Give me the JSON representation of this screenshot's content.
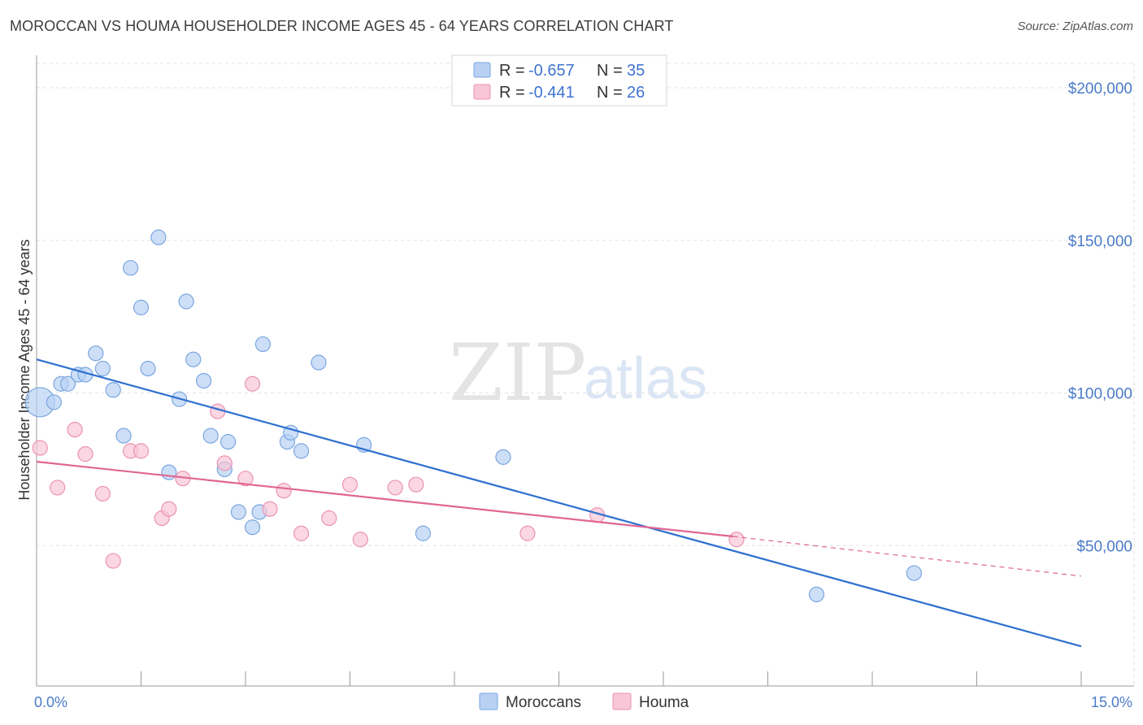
{
  "title": "MOROCCAN VS HOUMA HOUSEHOLDER INCOME AGES 45 - 64 YEARS CORRELATION CHART",
  "source": "Source: ZipAtlas.com",
  "watermark": {
    "zip": "ZIP",
    "atlas": "atlas"
  },
  "colors": {
    "moroccans_fill": "#b8d1f3",
    "moroccans_stroke": "#7aa6e0",
    "moroccans_line": "#2d6fd0",
    "houma_fill": "#f8c6d6",
    "houma_stroke": "#ec93b2",
    "houma_line": "#e06694",
    "grid": "#e2e2e2",
    "tick": "#4a7bc8"
  },
  "legend": {
    "rows": [
      {
        "r_label": "R = ",
        "r_value": "-0.657",
        "n_label": "N = ",
        "n_value": "35"
      },
      {
        "r_label": "R = ",
        "r_value": "-0.441",
        "n_label": "N = ",
        "n_value": "26"
      }
    ]
  },
  "bottom_legend": [
    "Moroccans",
    "Houma"
  ],
  "chart_data": {
    "type": "scatter",
    "title": "MOROCCAN VS HOUMA HOUSEHOLDER INCOME AGES 45 - 64 YEARS CORRELATION CHART",
    "xlabel": "",
    "ylabel": "Householder Income Ages 45 - 64 years",
    "xlim": [
      0,
      15
    ],
    "ylim": [
      4000,
      208000
    ],
    "x_tick_labels": [
      {
        "value": 0,
        "label": "0.0%"
      },
      {
        "value": 15,
        "label": "15.0%"
      }
    ],
    "y_ticks": [
      {
        "value": 50000,
        "label": "$50,000"
      },
      {
        "value": 100000,
        "label": "$100,000"
      },
      {
        "value": 150000,
        "label": "$150,000"
      },
      {
        "value": 200000,
        "label": "$200,000"
      }
    ],
    "series": [
      {
        "name": "Moroccans",
        "r": -0.657,
        "n": 35,
        "trend": {
          "x0": 0,
          "y0": 111000,
          "x1": 15,
          "y1": 17000
        },
        "points": [
          {
            "x": 0.05,
            "y": 97000,
            "big": true
          },
          {
            "x": 0.25,
            "y": 97000
          },
          {
            "x": 0.35,
            "y": 103000
          },
          {
            "x": 0.45,
            "y": 103000
          },
          {
            "x": 0.6,
            "y": 106000
          },
          {
            "x": 0.7,
            "y": 106000
          },
          {
            "x": 0.85,
            "y": 113000
          },
          {
            "x": 0.95,
            "y": 108000
          },
          {
            "x": 1.1,
            "y": 101000
          },
          {
            "x": 1.25,
            "y": 86000
          },
          {
            "x": 1.35,
            "y": 141000
          },
          {
            "x": 1.5,
            "y": 128000
          },
          {
            "x": 1.6,
            "y": 108000
          },
          {
            "x": 1.75,
            "y": 151000
          },
          {
            "x": 1.9,
            "y": 74000
          },
          {
            "x": 2.05,
            "y": 98000
          },
          {
            "x": 2.15,
            "y": 130000
          },
          {
            "x": 2.25,
            "y": 111000
          },
          {
            "x": 2.4,
            "y": 104000
          },
          {
            "x": 2.5,
            "y": 86000
          },
          {
            "x": 2.7,
            "y": 75000
          },
          {
            "x": 2.75,
            "y": 84000
          },
          {
            "x": 2.9,
            "y": 61000
          },
          {
            "x": 3.1,
            "y": 56000
          },
          {
            "x": 3.2,
            "y": 61000
          },
          {
            "x": 3.25,
            "y": 116000
          },
          {
            "x": 3.6,
            "y": 84000
          },
          {
            "x": 3.65,
            "y": 87000
          },
          {
            "x": 3.8,
            "y": 81000
          },
          {
            "x": 4.05,
            "y": 110000
          },
          {
            "x": 4.7,
            "y": 83000
          },
          {
            "x": 5.55,
            "y": 54000
          },
          {
            "x": 6.7,
            "y": 79000
          },
          {
            "x": 11.2,
            "y": 34000
          },
          {
            "x": 12.6,
            "y": 41000
          }
        ]
      },
      {
        "name": "Houma",
        "r": -0.441,
        "n": 26,
        "trend": {
          "x0": 0,
          "y0": 77500,
          "x1": 10.0,
          "y1": 53000
        },
        "trend_dashed": {
          "x0": 10.0,
          "y0": 53000,
          "x1": 15,
          "y1": 40000
        },
        "points": [
          {
            "x": 0.05,
            "y": 82000
          },
          {
            "x": 0.3,
            "y": 69000
          },
          {
            "x": 0.55,
            "y": 88000
          },
          {
            "x": 0.7,
            "y": 80000
          },
          {
            "x": 0.95,
            "y": 67000
          },
          {
            "x": 1.1,
            "y": 45000
          },
          {
            "x": 1.35,
            "y": 81000
          },
          {
            "x": 1.5,
            "y": 81000
          },
          {
            "x": 1.8,
            "y": 59000
          },
          {
            "x": 1.9,
            "y": 62000
          },
          {
            "x": 2.1,
            "y": 72000
          },
          {
            "x": 2.6,
            "y": 94000
          },
          {
            "x": 2.7,
            "y": 77000
          },
          {
            "x": 3.0,
            "y": 72000
          },
          {
            "x": 3.1,
            "y": 103000
          },
          {
            "x": 3.35,
            "y": 62000
          },
          {
            "x": 3.55,
            "y": 68000
          },
          {
            "x": 3.8,
            "y": 54000
          },
          {
            "x": 4.2,
            "y": 59000
          },
          {
            "x": 4.5,
            "y": 70000
          },
          {
            "x": 4.65,
            "y": 52000
          },
          {
            "x": 5.15,
            "y": 69000
          },
          {
            "x": 5.45,
            "y": 70000
          },
          {
            "x": 7.05,
            "y": 54000
          },
          {
            "x": 8.05,
            "y": 60000
          },
          {
            "x": 10.05,
            "y": 52000
          }
        ]
      }
    ]
  }
}
